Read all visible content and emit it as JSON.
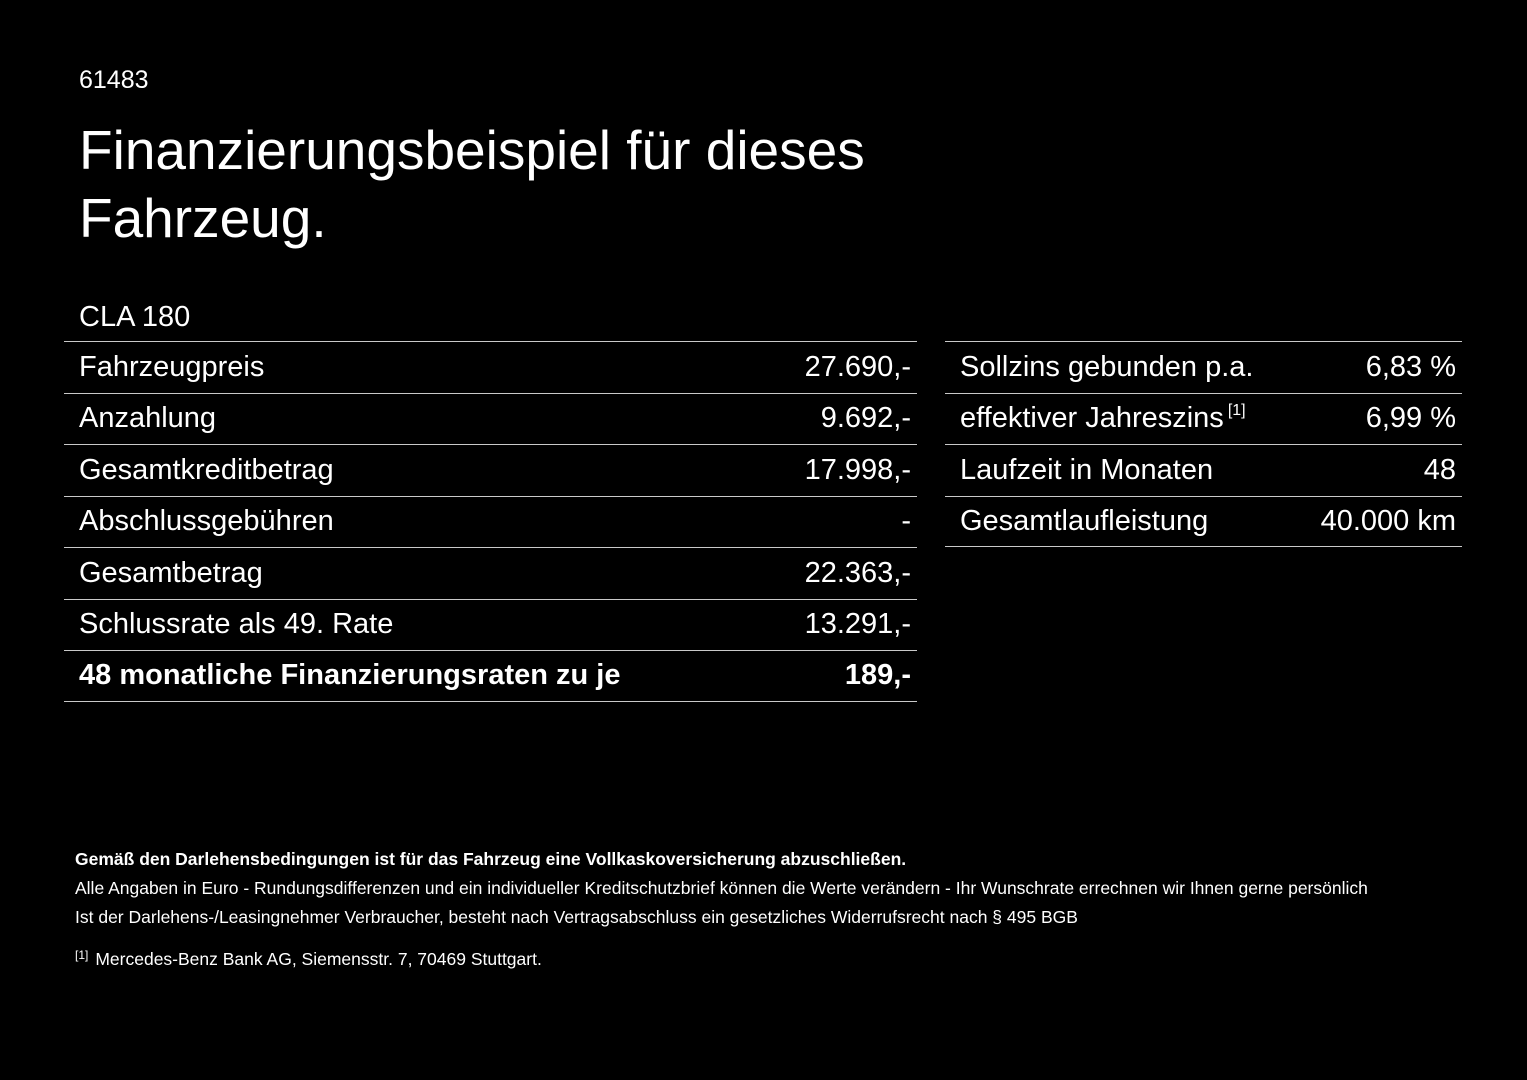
{
  "doc": {
    "id": "61483",
    "title": "Finanzierungsbeispiel für dieses Fahrzeug.",
    "model": "CLA 180"
  },
  "left_table": {
    "rows": [
      {
        "label": "Fahrzeugpreis",
        "value": "27.690,-"
      },
      {
        "label": "Anzahlung",
        "value": "9.692,-"
      },
      {
        "label": "Gesamtkreditbetrag",
        "value": "17.998,-"
      },
      {
        "label": "Abschlussgebühren",
        "value": "-"
      },
      {
        "label": "Gesamtbetrag",
        "value": "22.363,-"
      },
      {
        "label": "Schlussrate als 49. Rate",
        "value": "13.291,-"
      },
      {
        "label": "48 monatliche Finanzierungsraten zu je",
        "value": "189,-"
      }
    ]
  },
  "right_table": {
    "rows": [
      {
        "label": "Sollzins gebunden p.a.",
        "sup": "",
        "value": "6,83 %"
      },
      {
        "label": "effektiver Jahreszins",
        "sup": "[1]",
        "value": "6,99 %"
      },
      {
        "label": "Laufzeit in Monaten",
        "sup": "",
        "value": "48"
      },
      {
        "label": "Gesamtlaufleistung",
        "sup": "",
        "value": "40.000 km"
      }
    ]
  },
  "footnotes": {
    "insurance": "Gemäß den Darlehensbedingungen ist für das Fahrzeug eine Vollkaskoversicherung abzuschließen.",
    "euro_note": "Alle Angaben in Euro - Rundungsdifferenzen und ein individueller Kreditschutzbrief können die Werte verändern - Ihr Wunschrate errechnen wir Ihnen gerne persönlich",
    "withdrawal": "Ist der Darlehens-/Leasingnehmer Verbraucher, besteht nach Vertragsabschluss ein gesetzliches Widerrufsrecht nach § 495 BGB",
    "ref_marker": "[1]",
    "ref_text": "Mercedes-Benz Bank AG, Siemensstr. 7, 70469 Stuttgart."
  },
  "colors": {
    "background": "#000000",
    "text": "#ffffff",
    "divider_line": "#c9c9c9"
  }
}
